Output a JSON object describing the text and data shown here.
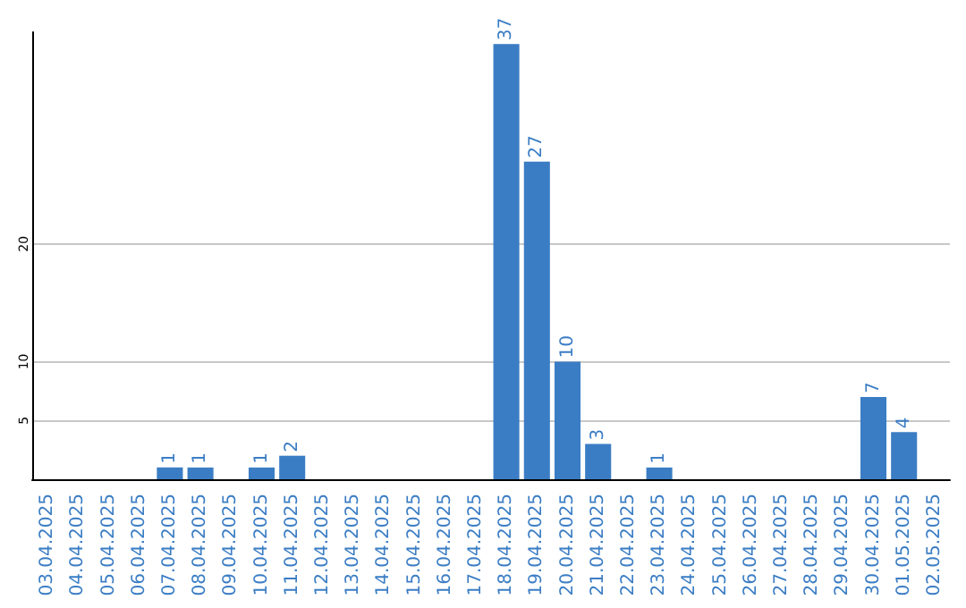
{
  "chart_data": {
    "type": "bar",
    "categories": [
      "03.04.2025",
      "04.04.2025",
      "05.04.2025",
      "06.04.2025",
      "07.04.2025",
      "08.04.2025",
      "09.04.2025",
      "10.04.2025",
      "11.04.2025",
      "12.04.2025",
      "13.04.2025",
      "14.04.2025",
      "15.04.2025",
      "16.04.2025",
      "17.04.2025",
      "18.04.2025",
      "19.04.2025",
      "20.04.2025",
      "21.04.2025",
      "22.04.2025",
      "23.04.2025",
      "24.04.2025",
      "25.04.2025",
      "26.04.2025",
      "27.04.2025",
      "28.04.2025",
      "29.04.2025",
      "30.04.2025",
      "01.05.2025",
      "02.05.2025"
    ],
    "values": [
      0,
      0,
      0,
      0,
      1,
      1,
      0,
      1,
      2,
      0,
      0,
      0,
      0,
      0,
      0,
      37,
      27,
      10,
      3,
      0,
      1,
      0,
      0,
      0,
      0,
      0,
      0,
      7,
      4,
      0
    ],
    "value_labels": [
      null,
      null,
      null,
      null,
      "1",
      "1",
      null,
      "1",
      "2",
      null,
      null,
      null,
      null,
      null,
      null,
      "37",
      "27",
      "10",
      "3",
      null,
      "1",
      null,
      null,
      null,
      null,
      null,
      null,
      "7",
      "4",
      null
    ],
    "color": "#3b7dc4",
    "ylim": [
      0,
      38
    ],
    "yticks": [
      5,
      10,
      20
    ],
    "grid": "y"
  }
}
